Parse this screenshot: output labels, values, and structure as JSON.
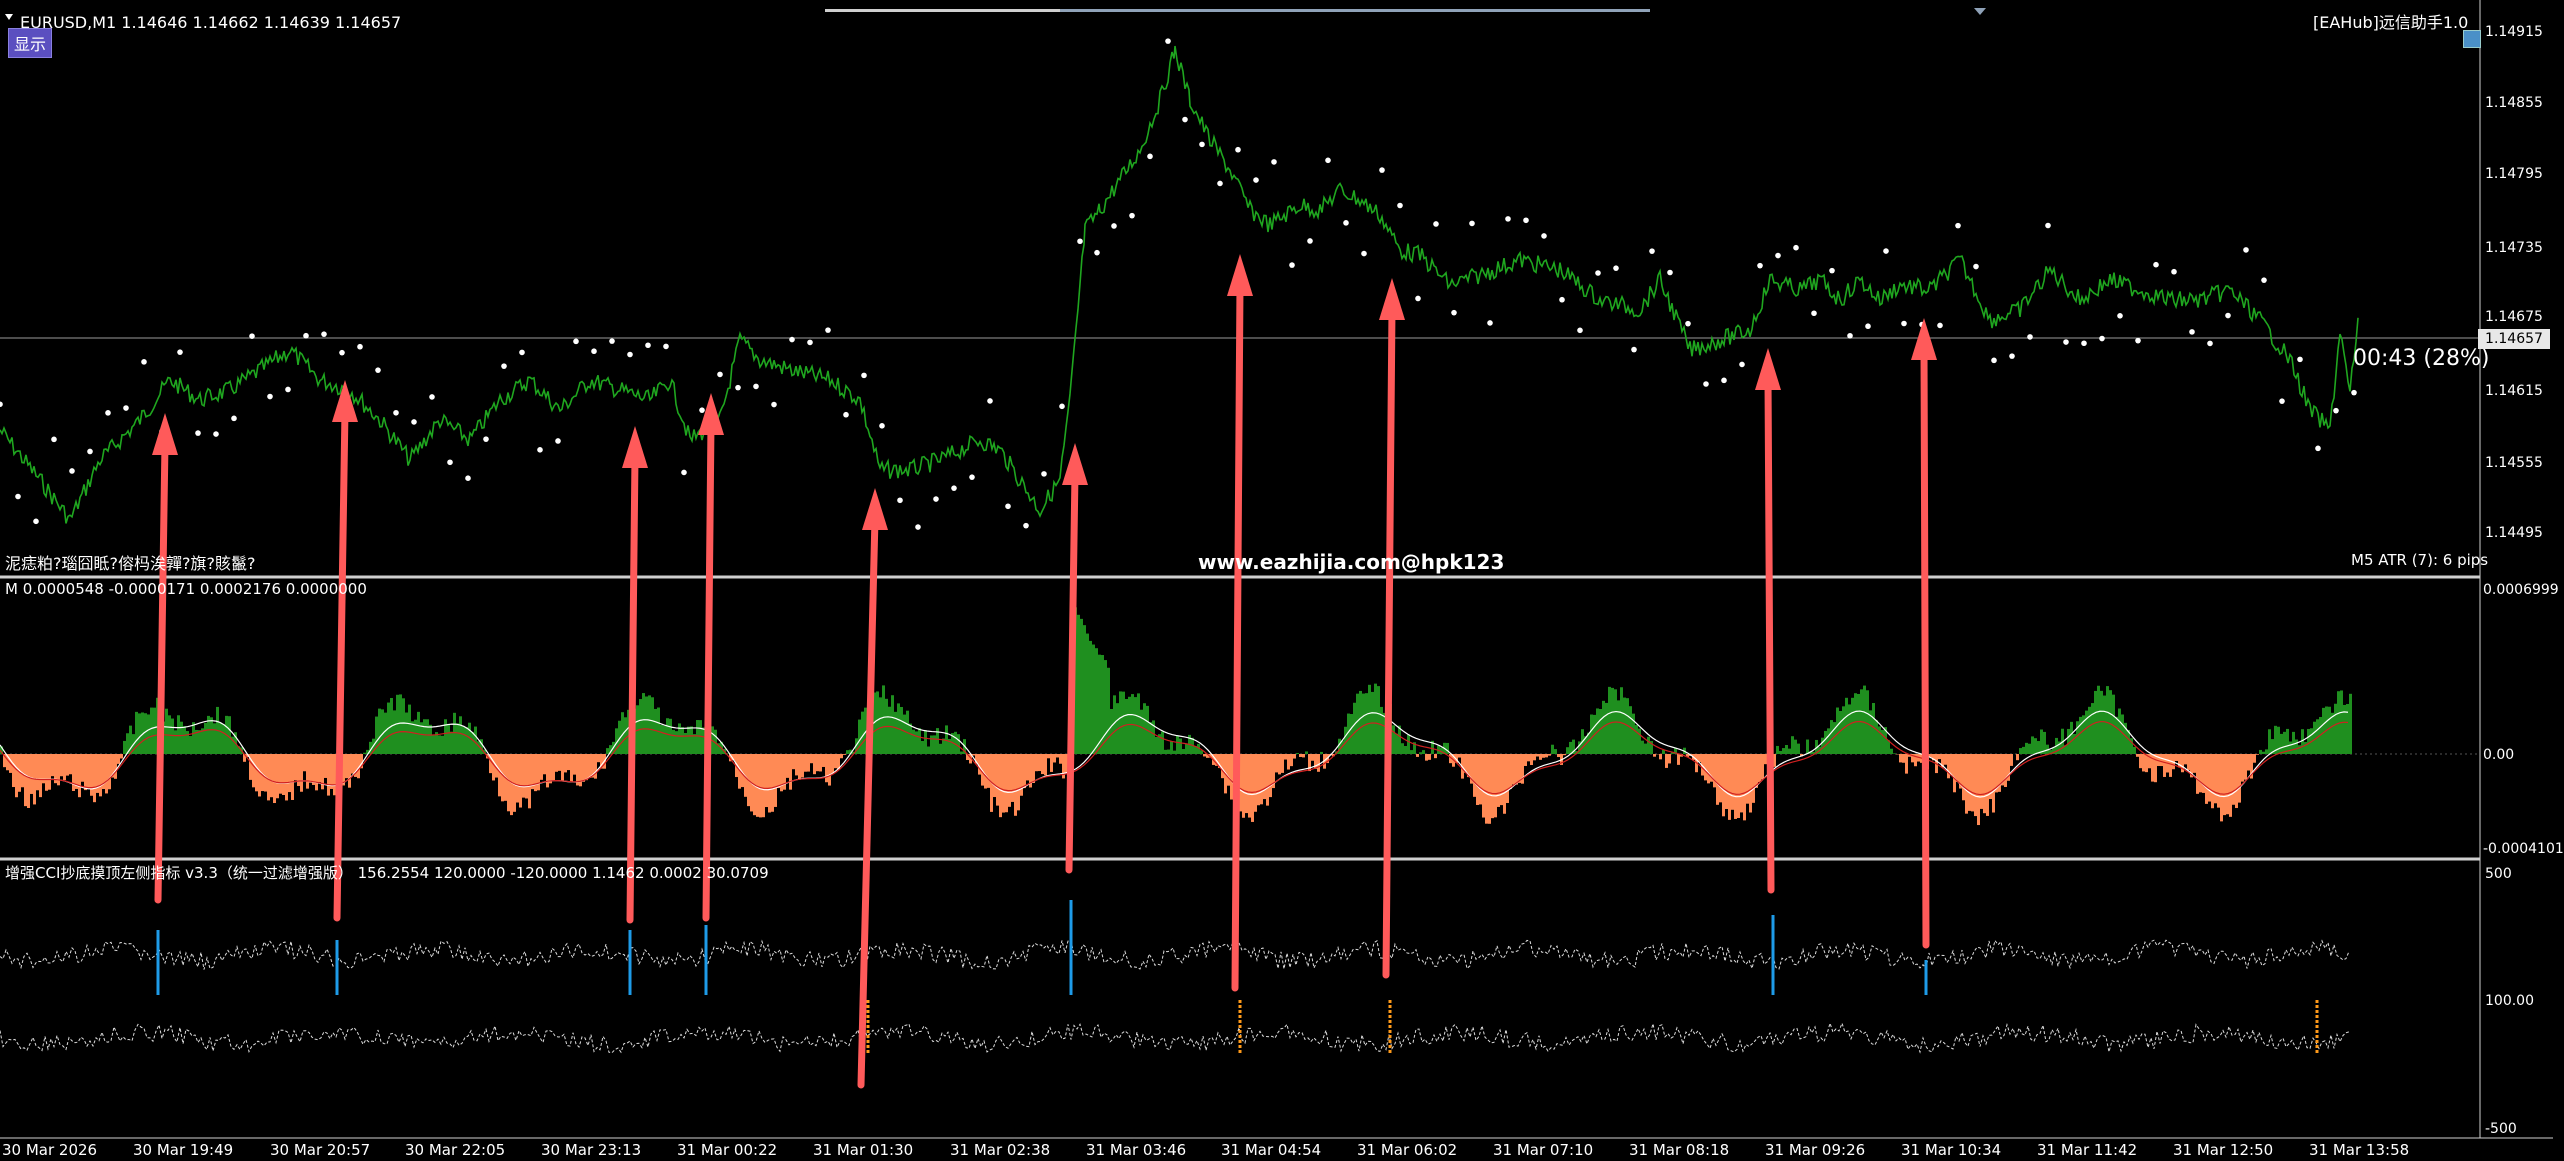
{
  "header": {
    "symbol_line": "EURUSD,M1  1.14646 1.14662 1.14639 1.14657",
    "show_button": "显示",
    "ea_title": "[EAHub]远信助手1.0",
    "watermark": "www.eazhijia.com@hpk123",
    "countdown": "00:43 (28%)",
    "atr_label": "M5 ATR (7): 6 pips",
    "garbled_label": "泥痣粕?瑙囧眡?傛杩涘嚲?旗?賅鬣?"
  },
  "price_axis": {
    "labels": [
      "1.14915",
      "1.14855",
      "1.14795",
      "1.14735",
      "1.14675",
      "1.14615",
      "1.14555",
      "1.14495"
    ],
    "current_price": "1.14657"
  },
  "macd_panel": {
    "label": "M 0.0000548 -0.0000171 0.0002176 0.0000000",
    "axis_labels": [
      "0.0006999",
      "0.00",
      "-0.0004101"
    ]
  },
  "cci_panel": {
    "label": "增强CCI抄底摸顶左侧指标 v3.3（统一过滤增强版） 156.2554 120.0000 -120.0000 1.1462 0.0002 30.0709",
    "axis_labels": [
      "500",
      "100.00",
      "-500"
    ]
  },
  "time_axis": {
    "labels": [
      "30 Mar 2026",
      "30 Mar 19:49",
      "30 Mar 20:57",
      "30 Mar 22:05",
      "30 Mar 23:13",
      "31 Mar 00:22",
      "31 Mar 01:30",
      "31 Mar 02:38",
      "31 Mar 03:46",
      "31 Mar 04:54",
      "31 Mar 06:02",
      "31 Mar 07:10",
      "31 Mar 08:18",
      "31 Mar 09:26",
      "31 Mar 10:34",
      "31 Mar 11:42",
      "31 Mar 12:50",
      "31 Mar 13:58"
    ]
  },
  "colors": {
    "price_line": "#1fa61f",
    "dots": "#ffffff",
    "arrow": "#ff5a5a",
    "macd_pos": "#1f8f1f",
    "macd_neg": "#ff8a55",
    "cci_blue": "#1e9be8",
    "cci_orange": "#ff9a1a"
  }
}
